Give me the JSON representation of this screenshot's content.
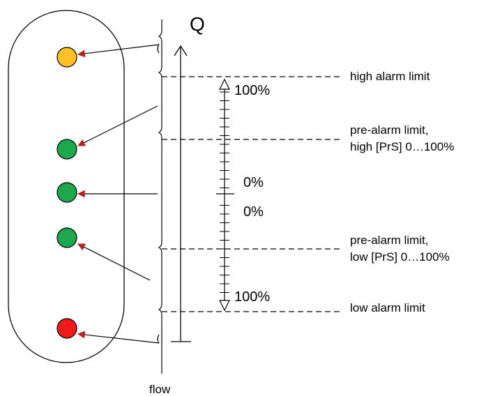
{
  "axis": {
    "symbol": "Q",
    "footer": "flow"
  },
  "limits": {
    "high_alarm": "high alarm limit",
    "pre_alarm_high_1": "pre-alarm limit,",
    "pre_alarm_high_2": "high [PrS] 0…100%",
    "pre_alarm_low_1": "pre-alarm limit,",
    "pre_alarm_low_2": "low [PrS] 0…100%",
    "low_alarm": "low alarm limit"
  },
  "scale": {
    "top": "100%",
    "mid_upper": "0%",
    "mid_lower": "0%",
    "bottom": "100%"
  },
  "leds": [
    {
      "name": "high-alarm-led",
      "color": "#FFC125"
    },
    {
      "name": "pre-alarm-high-led",
      "color": "#1DA84E"
    },
    {
      "name": "normal-led",
      "color": "#1DA84E"
    },
    {
      "name": "pre-alarm-low-led",
      "color": "#1DA84E"
    },
    {
      "name": "low-alarm-led",
      "color": "#F01A1A"
    }
  ],
  "colors": {
    "arrowhead": "#C0392B",
    "stroke": "#000000"
  }
}
